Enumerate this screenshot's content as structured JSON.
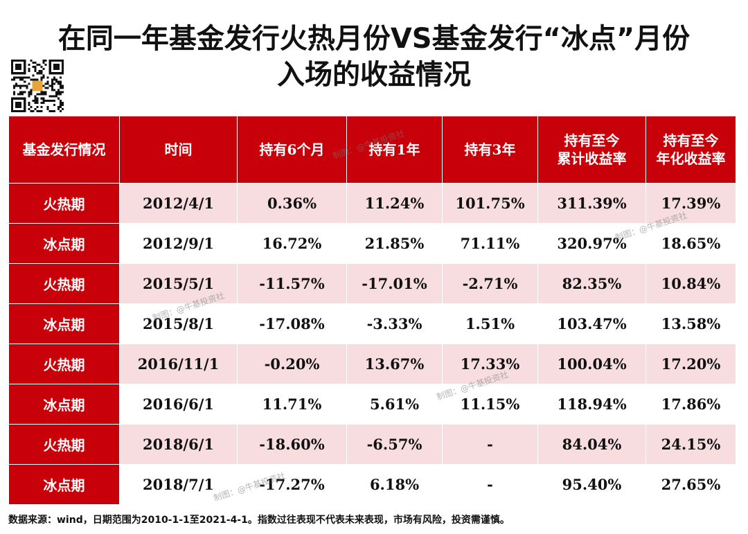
{
  "title": {
    "line1": "在同一年基金发行火热月份VS基金发行“冰点”月份",
    "line2": "入场的收益情况"
  },
  "chart_data": {
    "type": "table",
    "columns": [
      "基金发行情况",
      "时间",
      "持有6个月",
      "持有1年",
      "持有3年",
      "持有至今\n累计收益率",
      "持有至今\n年化收益率"
    ],
    "rows": [
      {
        "period": "火热期",
        "date": "2012/4/1",
        "h6m": "0.36%",
        "h1y": "11.24%",
        "h3y": "101.75%",
        "cum": "311.39%",
        "ann": "17.39%",
        "kind": "hot"
      },
      {
        "period": "冰点期",
        "date": "2012/9/1",
        "h6m": "16.72%",
        "h1y": "21.85%",
        "h3y": "71.11%",
        "cum": "320.97%",
        "ann": "18.65%",
        "kind": "cold"
      },
      {
        "period": "火热期",
        "date": "2015/5/1",
        "h6m": "-11.57%",
        "h1y": "-17.01%",
        "h3y": "-2.71%",
        "cum": "82.35%",
        "ann": "10.84%",
        "kind": "hot"
      },
      {
        "period": "冰点期",
        "date": "2015/8/1",
        "h6m": "-17.08%",
        "h1y": "-3.33%",
        "h3y": "1.51%",
        "cum": "103.47%",
        "ann": "13.58%",
        "kind": "cold"
      },
      {
        "period": "火热期",
        "date": "2016/11/1",
        "h6m": "-0.20%",
        "h1y": "13.67%",
        "h3y": "17.33%",
        "cum": "100.04%",
        "ann": "17.20%",
        "kind": "hot"
      },
      {
        "period": "冰点期",
        "date": "2016/6/1",
        "h6m": "11.71%",
        "h1y": "5.61%",
        "h3y": "11.15%",
        "cum": "118.94%",
        "ann": "17.86%",
        "kind": "cold"
      },
      {
        "period": "火热期",
        "date": "2018/6/1",
        "h6m": "-18.60%",
        "h1y": "-6.57%",
        "h3y": "-",
        "cum": "84.04%",
        "ann": "24.15%",
        "kind": "hot"
      },
      {
        "period": "冰点期",
        "date": "2018/7/1",
        "h6m": "-17.27%",
        "h1y": "6.18%",
        "h3y": "-",
        "cum": "95.40%",
        "ann": "27.65%",
        "kind": "cold"
      }
    ]
  },
  "footer": "数据来源：wind，日期范围为2010-1-1至2021-4-1。指数过往表现不代表未来表现，市场有风险，投资需谨慎。",
  "watermark": "制图：@牛基投资社",
  "colors": {
    "header": "#c8000a",
    "hot_row": "#f7dde0",
    "cold_row": "#ffffff"
  }
}
